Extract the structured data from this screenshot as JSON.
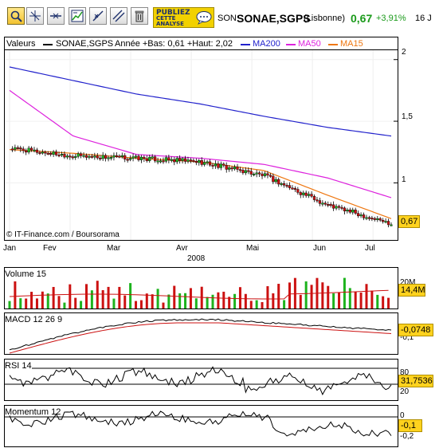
{
  "toolbar": {
    "tools": [
      "zoom-tool",
      "crosshair-tool",
      "horizontal-line-tool",
      "studies-tool",
      "trendline-tool",
      "parallel-lines-tool",
      "delete-tool"
    ],
    "promo_line1": "PUBLIEZ",
    "promo_line2": "CETTE",
    "promo_line3": "ANALYSE",
    "code": "SON",
    "name": "SONAE,SGPS",
    "exchange": "(Lisbonne)",
    "price": "0,67",
    "change": "+3,91%",
    "period": "16 J"
  },
  "colors": {
    "up": "#1db31d",
    "down": "#cc1111",
    "ma200": "#2222cc",
    "ma50": "#dd22dd",
    "ma15": "#ee7711",
    "price_box": "#ffd21e",
    "change": "#1a9a1a"
  },
  "legend": {
    "title": "Valeurs",
    "series": "SONAE,SGPS",
    "range": "Année +Bas: 0,61 +Haut: 2,02",
    "ma200": "MA200",
    "ma50": "MA50",
    "ma15": "MA15"
  },
  "price_panel": {
    "y_ticks": [
      "2",
      "1,5",
      "1"
    ],
    "last_value": "0,67",
    "credit": "© IT-Finance.com / Boursorama",
    "months": [
      "Jan",
      "Fev",
      "Mar",
      "Avr",
      "Mai",
      "Jun",
      "Jul"
    ],
    "year": "2008"
  },
  "volume_panel": {
    "title": "Volume 15",
    "last_value": "14,4M",
    "tick": "20M"
  },
  "macd_panel": {
    "title": "MACD 12 26 9",
    "last_value": "-0,0748",
    "tick": "-0,1"
  },
  "rsi_panel": {
    "title": "RSI 14",
    "last_value": "31,7536",
    "tick_high": "80",
    "tick_low": "20"
  },
  "momentum_panel": {
    "title": "Momentum 12",
    "last_value": "-0,1",
    "tick_high": "0",
    "tick_low": "-0,2"
  },
  "chart_data": {
    "type": "line",
    "title": "SONAE,SGPS",
    "x": [
      "Jan",
      "Fev",
      "Mar",
      "Avr",
      "Mai",
      "Jun",
      "Jul"
    ],
    "close": [
      1.28,
      1.22,
      1.2,
      1.17,
      1.06,
      0.82,
      0.67
    ],
    "ma200": [
      1.94,
      1.83,
      1.72,
      1.64,
      1.54,
      1.45,
      1.38
    ],
    "ma50": [
      1.75,
      1.38,
      1.23,
      1.2,
      1.15,
      1.04,
      0.88
    ],
    "ma15": [
      1.27,
      1.24,
      1.2,
      1.17,
      1.1,
      0.9,
      0.71
    ],
    "ylim": [
      0.55,
      2.05
    ],
    "grid": true
  }
}
